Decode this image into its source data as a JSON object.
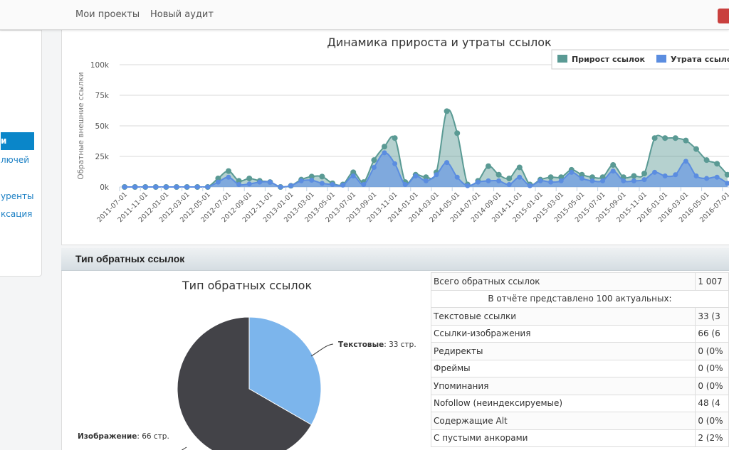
{
  "nav": {
    "links": [
      "Мои проекты",
      "Новый аудит"
    ]
  },
  "sidebar": {
    "items": [
      {
        "label": "и",
        "active": true
      },
      {
        "label": "лючей"
      },
      {
        "label": "уренты"
      },
      {
        "label": "ксация"
      }
    ]
  },
  "section": {
    "title": "Тип обратных ссылок"
  },
  "chart_data": [
    {
      "type": "area",
      "title": "Динамика прироста и утраты ссылок",
      "ylabel": "Обратные внешние ссылки",
      "ylim": [
        0,
        100000
      ],
      "yticks": [
        "0k",
        "25k",
        "50k",
        "75k",
        "100k"
      ],
      "grid": true,
      "legend": "top-right",
      "tick_labels": [
        "2011-07-01",
        "2011-11-01",
        "2012-01-01",
        "2012-03-01",
        "2012-05-01",
        "2012-07-01",
        "2012-09-01",
        "2012-11-01",
        "2013-01-01",
        "2013-03-01",
        "2013-05-01",
        "2013-07-01",
        "2013-09-01",
        "2013-11-01",
        "2014-01-01",
        "2014-03-01",
        "2014-05-01",
        "2014-07-01",
        "2014-09-01",
        "2014-11-01",
        "2015-01-01",
        "2015-03-01",
        "2015-05-01",
        "2015-07-01",
        "2015-09-01",
        "2015-11-01",
        "2016-01-01",
        "2016-03-01",
        "2016-05-01",
        "2016-07-01"
      ],
      "series": [
        {
          "name": "Прирост ссылок",
          "color": "#5a9a94",
          "values": [
            0,
            0,
            0,
            0,
            0,
            0,
            0,
            0,
            0,
            7000,
            13000,
            5000,
            7000,
            5000,
            4000,
            0,
            1000,
            6000,
            8500,
            8500,
            3000,
            2000,
            12000,
            4000,
            22000,
            33000,
            40000,
            4000,
            10000,
            8000,
            12000,
            62000,
            44000,
            2000,
            5000,
            17000,
            10000,
            7000,
            16000,
            2000,
            6000,
            8000,
            8000,
            14000,
            10000,
            8000,
            8000,
            18000,
            8000,
            9000,
            11000,
            40000,
            40000,
            40000,
            38000,
            31000,
            22000,
            19000,
            10000
          ]
        },
        {
          "name": "Утрата ссылок",
          "color": "#5b8de0",
          "values": [
            0,
            0,
            0,
            0,
            0,
            0,
            0,
            0,
            0,
            4000,
            8000,
            2000,
            2500,
            4000,
            4000,
            0,
            1000,
            5000,
            5500,
            3000,
            2000,
            1500,
            9000,
            2000,
            16000,
            28000,
            19000,
            2000,
            9000,
            5000,
            10000,
            20000,
            8000,
            1000,
            4000,
            5000,
            5000,
            2000,
            8000,
            1000,
            5000,
            4000,
            5000,
            12000,
            7000,
            5000,
            5000,
            13000,
            5000,
            5000,
            6000,
            12000,
            9000,
            10000,
            21000,
            9000,
            7000,
            8000,
            3000
          ]
        }
      ]
    },
    {
      "type": "pie",
      "title": "Тип обратных ссылок",
      "slices": [
        {
          "name": "Текстовые",
          "value": 33,
          "label_suffix": ": 33 стр.",
          "color": "#7cb5ec"
        },
        {
          "name": "Изображение",
          "value": 66,
          "label_suffix": ": 66 стр.",
          "color": "#434348"
        }
      ]
    }
  ],
  "stats_table": {
    "total": {
      "label": "Всего обратных ссылок",
      "value": "1 007"
    },
    "note": "В отчёте представлено 100 актуальных:",
    "rows": [
      {
        "label": "Текстовые ссылки",
        "value": "33 (3"
      },
      {
        "label": "Ссылки-изображения",
        "value": "66 (6"
      },
      {
        "label": "Редиректы",
        "value": "0 (0%"
      },
      {
        "label": "Фреймы",
        "value": "0 (0%"
      },
      {
        "label": "Упоминания",
        "value": "0 (0%"
      },
      {
        "label": "Nofollow (неиндексируемые)",
        "value": "48 (4"
      },
      {
        "label": "Содержащие Alt",
        "value": "0 (0%"
      },
      {
        "label": "С пустыми анкорами",
        "value": "2 (2%"
      }
    ]
  }
}
